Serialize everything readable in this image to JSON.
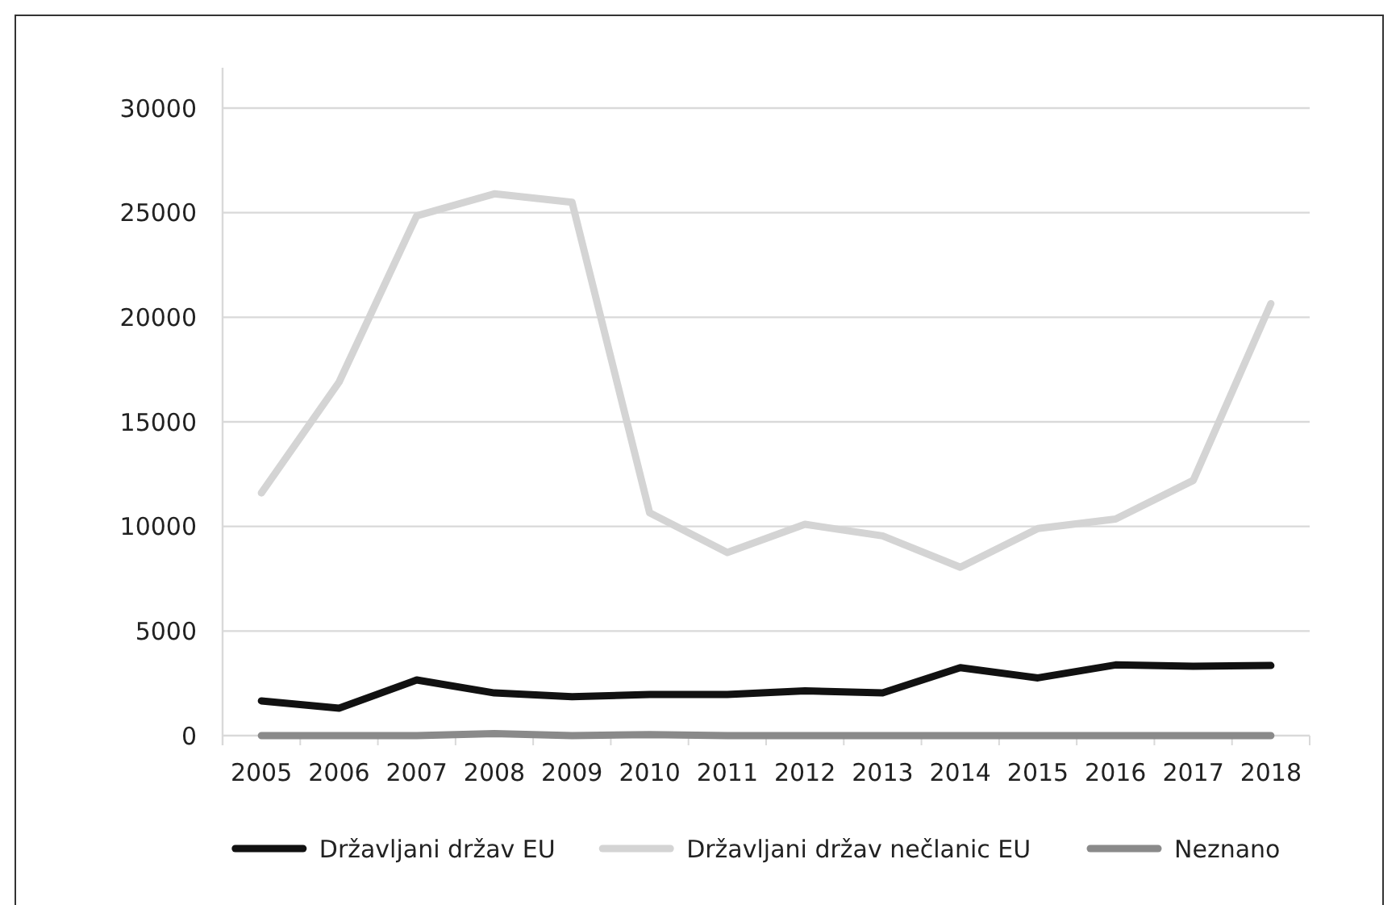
{
  "chart_data": {
    "type": "line",
    "categories": [
      "2005",
      "2006",
      "2007",
      "2008",
      "2009",
      "2010",
      "2011",
      "2012",
      "2013",
      "2014",
      "2015",
      "2016",
      "2017",
      "2018"
    ],
    "series": [
      {
        "name": "Državljani držav EU",
        "color": "#111111",
        "values": [
          1660,
          1310,
          2660,
          2040,
          1860,
          1970,
          1970,
          2140,
          2040,
          3250,
          2760,
          3380,
          3320,
          3350
        ]
      },
      {
        "name": "Državljani držav nečlanic EU",
        "color": "#d4d4d4",
        "values": [
          11600,
          16900,
          24850,
          25900,
          25500,
          10650,
          8750,
          10100,
          9550,
          8050,
          9900,
          10350,
          12200,
          20650
        ]
      },
      {
        "name": "Neznano",
        "color": "#8a8a8a",
        "values": [
          0,
          0,
          0,
          100,
          0,
          50,
          0,
          0,
          0,
          0,
          0,
          0,
          0,
          0
        ]
      }
    ],
    "ylim": [
      0,
      30000
    ],
    "yticks": [
      0,
      5000,
      10000,
      15000,
      20000,
      25000,
      30000
    ],
    "grid": "y",
    "legend": "bottom",
    "marker": "none",
    "line_style": "solid"
  }
}
